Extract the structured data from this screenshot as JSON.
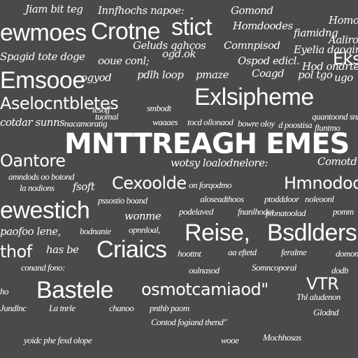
{
  "words": {
    "w01": "Jiam bit teg",
    "w02": "Innfhochs napoe:",
    "w03": "Gomond",
    "w04": "Homor",
    "w05": "ewmoes",
    "w06": "Crotne",
    "w07": "stict",
    "w08": "Homdoodes",
    "w09": "fiamidng",
    "w10": "Aaliroq",
    "w11": "Geluds qahcos",
    "w12": "Comnpisod",
    "w13": "Eyelia daoqinds",
    "w14": "ogd.ok",
    "w15": "Spagid tote doge",
    "w16": "ooue conl;",
    "w17": "Ospod edicl.",
    "w18": "Ekss",
    "w19": "Hod ondrted",
    "w20": "Emsooe",
    "w21": "ogyod",
    "w22": "pdlh loop",
    "w23": "pmaze",
    "w24": "Coagd",
    "w25": "pol tgo",
    "w26": "ugo",
    "w27": "Aselocntbletes",
    "w28": "Exlsipheme",
    "w29": "tesoff",
    "w30": "smbodt",
    "w31": "tuomal",
    "w32": "cotdar sunns",
    "w33": "nacamoratig",
    "w34": "waaaes",
    "w35": "tocd ollonaod",
    "w36": "bowre oloy",
    "w37": "d poostisa",
    "w38": "quantoond snnbe",
    "w39": "fluntmo",
    "w40": "MNTTREAGH EMES",
    "w41": "Oantore",
    "w42": "wotsy loalodnelore:",
    "w43": "Comotd",
    "w44": "amndods oo botond",
    "w45": "la nodions",
    "w46": "fsoft",
    "w47": "Cexoolde",
    "w48": "on forqodmo",
    "w49": "Hmnodod",
    "w50": "pssostio boand",
    "w51": "aloseadthoos",
    "w52": "ptodddoor",
    "w53": "noleoonl",
    "w54": "fnanlhodot",
    "w55": "ewestich",
    "w56": "wonme",
    "w57": "podelaved",
    "w58": "p.onatoolad",
    "w59": "pomm",
    "w60": "paofoo lene,",
    "w61": "bodnanie",
    "w62": "opnnloal,",
    "w63": "Reise,",
    "w64": "Bsdlders",
    "w65": "thof",
    "w66": "has be",
    "w67": "Criaics",
    "w68": "hoottnt",
    "w69": "aa eftetd",
    "w70": "feralme",
    "w71": "domonnsod,",
    "w72": "conand fono:",
    "w73": "oulnasod",
    "w74": "Somncoporal",
    "w75": "dodb",
    "w76": "Bastele",
    "w77": "osmotcamiaod\"",
    "w78": "VTR",
    "w79": "ho",
    "w80": "pnthb paom",
    "w81": "chanoo",
    "w82": "Thl aludenon",
    "w83": "Jundlnc",
    "w84": "La tnrle",
    "w85": "Contod fogiand thend\"",
    "w86": "Glodnd",
    "w87": "yoidc phe fexd olope",
    "w88": "wooe",
    "w89": "Mochhosas"
  }
}
